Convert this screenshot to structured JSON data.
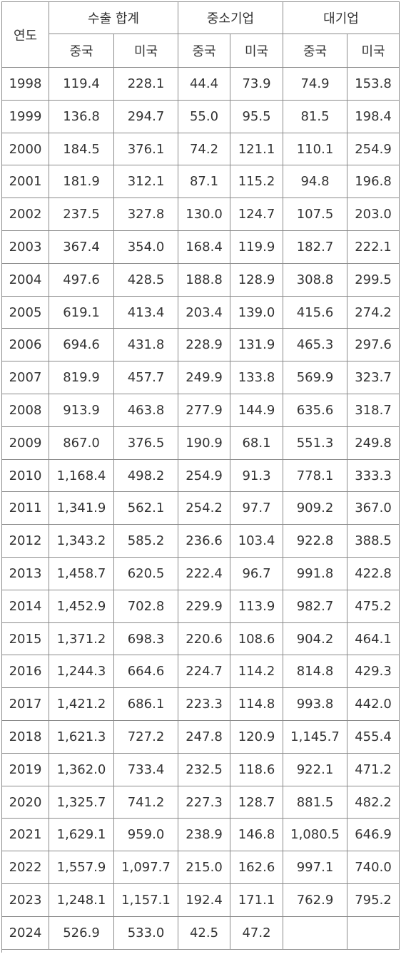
{
  "table": {
    "header": {
      "year": "연도",
      "groups": [
        "수출 합계",
        "중소기업",
        "대기업"
      ],
      "sub": [
        "중국",
        "미국",
        "중국",
        "미국",
        "중국",
        "미국"
      ]
    },
    "rows": [
      [
        "1998",
        "119.4",
        "228.1",
        "44.4",
        "73.9",
        "74.9",
        "153.8"
      ],
      [
        "1999",
        "136.8",
        "294.7",
        "55.0",
        "95.5",
        "81.5",
        "198.4"
      ],
      [
        "2000",
        "184.5",
        "376.1",
        "74.2",
        "121.1",
        "110.1",
        "254.9"
      ],
      [
        "2001",
        "181.9",
        "312.1",
        "87.1",
        "115.2",
        "94.8",
        "196.8"
      ],
      [
        "2002",
        "237.5",
        "327.8",
        "130.0",
        "124.7",
        "107.5",
        "203.0"
      ],
      [
        "2003",
        "367.4",
        "354.0",
        "168.4",
        "119.9",
        "182.7",
        "222.1"
      ],
      [
        "2004",
        "497.6",
        "428.5",
        "188.8",
        "128.9",
        "308.8",
        "299.5"
      ],
      [
        "2005",
        "619.1",
        "413.4",
        "203.4",
        "139.0",
        "415.6",
        "274.2"
      ],
      [
        "2006",
        "694.6",
        "431.8",
        "228.9",
        "131.9",
        "465.3",
        "297.6"
      ],
      [
        "2007",
        "819.9",
        "457.7",
        "249.9",
        "133.8",
        "569.9",
        "323.7"
      ],
      [
        "2008",
        "913.9",
        "463.8",
        "277.9",
        "144.9",
        "635.6",
        "318.7"
      ],
      [
        "2009",
        "867.0",
        "376.5",
        "190.9",
        "68.1",
        "551.3",
        "249.8"
      ],
      [
        "2010",
        "1,168.4",
        "498.2",
        "254.9",
        "91.3",
        "778.1",
        "333.3"
      ],
      [
        "2011",
        "1,341.9",
        "562.1",
        "254.2",
        "97.7",
        "909.2",
        "367.0"
      ],
      [
        "2012",
        "1,343.2",
        "585.2",
        "236.6",
        "103.4",
        "922.8",
        "388.5"
      ],
      [
        "2013",
        "1,458.7",
        "620.5",
        "222.4",
        "96.7",
        "991.8",
        "422.8"
      ],
      [
        "2014",
        "1,452.9",
        "702.8",
        "229.9",
        "113.9",
        "982.7",
        "475.2"
      ],
      [
        "2015",
        "1,371.2",
        "698.3",
        "220.6",
        "108.6",
        "904.2",
        "464.1"
      ],
      [
        "2016",
        "1,244.3",
        "664.6",
        "224.7",
        "114.2",
        "814.8",
        "429.3"
      ],
      [
        "2017",
        "1,421.2",
        "686.1",
        "223.3",
        "114.8",
        "993.8",
        "442.0"
      ],
      [
        "2018",
        "1,621.3",
        "727.2",
        "247.8",
        "120.9",
        "1,145.7",
        "455.4"
      ],
      [
        "2019",
        "1,362.0",
        "733.4",
        "232.5",
        "118.6",
        "922.1",
        "471.2"
      ],
      [
        "2020",
        "1,325.7",
        "741.2",
        "227.3",
        "128.7",
        "881.5",
        "482.2"
      ],
      [
        "2021",
        "1,629.1",
        "959.0",
        "238.9",
        "146.8",
        "1,080.5",
        "646.9"
      ],
      [
        "2022",
        "1,557.9",
        "1,097.7",
        "215.0",
        "162.6",
        "997.1",
        "740.0"
      ],
      [
        "2023",
        "1,248.1",
        "1,157.1",
        "192.4",
        "171.1",
        "762.9",
        "795.2"
      ],
      [
        "2024",
        "526.9",
        "533.0",
        "42.5",
        "47.2",
        null,
        null
      ]
    ]
  }
}
